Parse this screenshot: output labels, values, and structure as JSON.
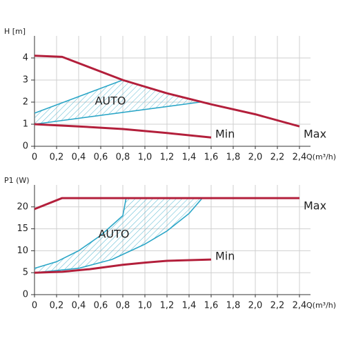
{
  "chart_data": [
    {
      "type": "line",
      "ylabel": "H [m]",
      "xlabel": "Q(m³/h)",
      "xlim": [
        0,
        2.5
      ],
      "ylim": [
        0,
        5
      ],
      "xticks": [
        0,
        {
          "value": 0.2,
          "label": "0,2"
        },
        {
          "value": 0.4,
          "label": "0,4"
        },
        {
          "value": 0.6,
          "label": "0,6"
        },
        {
          "value": 0.8,
          "label": "0,8"
        },
        {
          "value": 1.0,
          "label": "1,0"
        },
        {
          "value": 1.2,
          "label": "1,2"
        },
        {
          "value": 1.4,
          "label": "1,4"
        },
        {
          "value": 1.6,
          "label": "1,6"
        },
        {
          "value": 1.8,
          "label": "1,8"
        },
        {
          "value": 2.0,
          "label": "2,0"
        },
        {
          "value": 2.2,
          "label": "2,2"
        },
        {
          "value": 2.4,
          "label": "2,4"
        }
      ],
      "yticks": [
        0,
        1,
        2,
        3,
        4
      ],
      "grid": true,
      "annotation": "AUTO",
      "series": [
        {
          "name": "Max",
          "color": "#b31f3b",
          "x": [
            0,
            0.25,
            0.8,
            1.2,
            1.6,
            2.0,
            2.4
          ],
          "values": [
            4.1,
            4.05,
            3.0,
            2.4,
            1.9,
            1.45,
            0.9
          ]
        },
        {
          "name": "Min",
          "color": "#b31f3b",
          "x": [
            0,
            0.4,
            0.8,
            1.2,
            1.6
          ],
          "values": [
            1.0,
            0.9,
            0.78,
            0.6,
            0.4
          ]
        },
        {
          "color": "#2ba6c7",
          "x": [
            0,
            0.8
          ],
          "values": [
            1.5,
            3.0
          ]
        },
        {
          "color": "#2ba6c7",
          "x": [
            0,
            1.5
          ],
          "values": [
            1.0,
            2.0
          ]
        }
      ]
    },
    {
      "type": "line",
      "ylabel": "P1 (W)",
      "xlabel": "Q(m³/h)",
      "xlim": [
        0,
        2.5
      ],
      "ylim": [
        0,
        25
      ],
      "xticks": [
        0,
        {
          "value": 0.2,
          "label": "0,2"
        },
        {
          "value": 0.4,
          "label": "0,4"
        },
        {
          "value": 0.6,
          "label": "0,6"
        },
        {
          "value": 0.8,
          "label": "0,8"
        },
        {
          "value": 1.0,
          "label": "1,0"
        },
        {
          "value": 1.2,
          "label": "1,2"
        },
        {
          "value": 1.4,
          "label": "1,4"
        },
        {
          "value": 1.6,
          "label": "1,6"
        },
        {
          "value": 1.8,
          "label": "1,8"
        },
        {
          "value": 2.0,
          "label": "2,0"
        },
        {
          "value": 2.2,
          "label": "2,2"
        },
        {
          "value": 2.4,
          "label": "2,4"
        }
      ],
      "yticks": [
        0,
        5,
        10,
        15,
        20
      ],
      "grid": true,
      "annotation": "AUTO",
      "series": [
        {
          "name": "Max",
          "color": "#b31f3b",
          "x": [
            0,
            0.25,
            2.4
          ],
          "values": [
            19.5,
            22,
            22
          ]
        },
        {
          "name": "Min",
          "color": "#b31f3b",
          "x": [
            0,
            0.25,
            0.5,
            0.8,
            1.0,
            1.2,
            1.6
          ],
          "values": [
            5,
            5.2,
            5.8,
            6.8,
            7.3,
            7.7,
            8.0
          ]
        },
        {
          "color": "#2ba6c7",
          "x": [
            0,
            0.2,
            0.4,
            0.6,
            0.8,
            0.83
          ],
          "values": [
            6,
            7.5,
            10,
            13.5,
            18,
            22
          ]
        },
        {
          "color": "#2ba6c7",
          "x": [
            0,
            0.4,
            0.7,
            1.0,
            1.2,
            1.4,
            1.52
          ],
          "values": [
            5,
            6,
            8,
            11.5,
            14.5,
            18.5,
            22
          ]
        }
      ]
    }
  ]
}
